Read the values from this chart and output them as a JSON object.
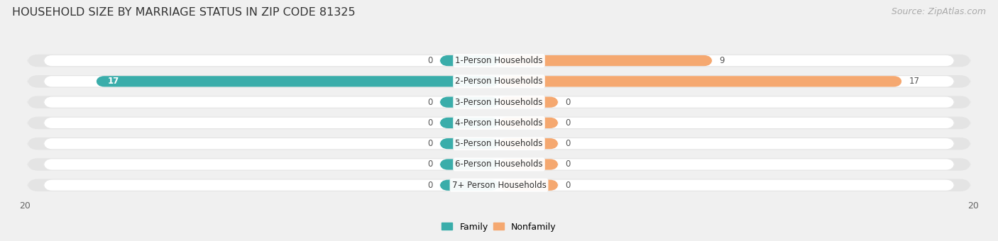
{
  "title": "HOUSEHOLD SIZE BY MARRIAGE STATUS IN ZIP CODE 81325",
  "source": "Source: ZipAtlas.com",
  "categories": [
    "7+ Person Households",
    "6-Person Households",
    "5-Person Households",
    "4-Person Households",
    "3-Person Households",
    "2-Person Households",
    "1-Person Households"
  ],
  "family_values": [
    0,
    0,
    0,
    0,
    0,
    17,
    0
  ],
  "nonfamily_values": [
    0,
    0,
    0,
    0,
    0,
    17,
    9
  ],
  "family_color": "#3aadaa",
  "nonfamily_color": "#f5a870",
  "xlim": [
    -20,
    20
  ],
  "background_color": "#f0f0f0",
  "bar_bg_color": "#e4e4e4",
  "bar_inner_color": "#ffffff",
  "title_fontsize": 11.5,
  "source_fontsize": 9,
  "label_fontsize": 8.5,
  "tick_fontsize": 9,
  "legend_fontsize": 9,
  "stub_size": 2.5,
  "bar_height": 0.6
}
